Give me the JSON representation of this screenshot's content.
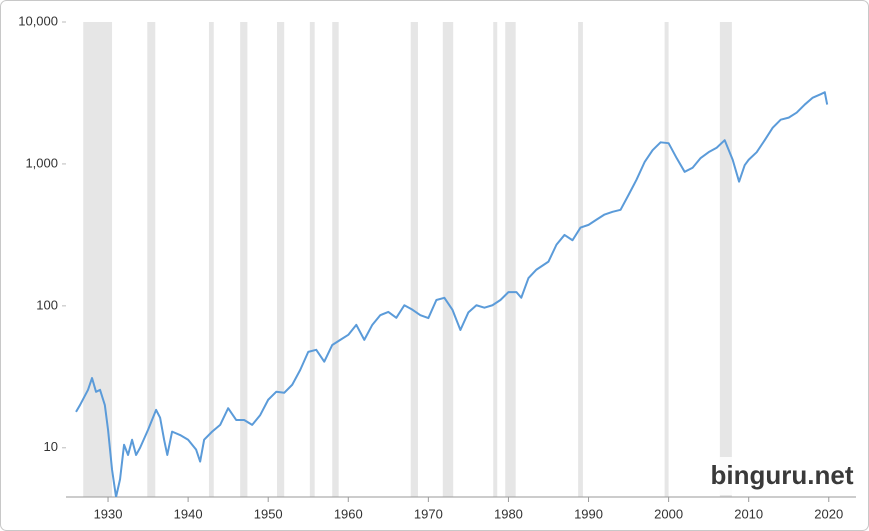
{
  "chart_data": {
    "type": "line",
    "log_y": true,
    "color": "#5b9bd9",
    "band_color": "#e6e6e6",
    "xlim": [
      1924.75,
      2023.4
    ],
    "ylim": [
      4.5,
      10000
    ],
    "xticks": [
      1930,
      1940,
      1950,
      1960,
      1970,
      1980,
      1990,
      2000,
      2010,
      2020
    ],
    "yticks": [
      10,
      100,
      {
        "value": 1000,
        "label": "1,000"
      },
      {
        "value": 10000,
        "label": "10,000"
      }
    ],
    "watermark": "binguru.net",
    "shaded_periods": [
      [
        1926.9,
        1930.5
      ],
      [
        1934.9,
        1935.9
      ],
      [
        1942.6,
        1943.2
      ],
      [
        1946.5,
        1947.4
      ],
      [
        1951.1,
        1952.0
      ],
      [
        1955.2,
        1955.8
      ],
      [
        1958.0,
        1958.8
      ],
      [
        1967.8,
        1968.7
      ],
      [
        1971.8,
        1973.1
      ],
      [
        1978.1,
        1978.6
      ],
      [
        1979.6,
        1980.9
      ],
      [
        1988.7,
        1989.3
      ],
      [
        1999.5,
        2000.0
      ],
      [
        2006.4,
        2007.9
      ]
    ],
    "x": [
      1926.0,
      1926.5,
      1927.5,
      1928.0,
      1928.5,
      1929.0,
      1929.6,
      1930.0,
      1930.5,
      1931.0,
      1931.5,
      1932.0,
      1932.5,
      1933.0,
      1933.5,
      1934.0,
      1935.0,
      1936.0,
      1936.5,
      1937.0,
      1937.4,
      1938.0,
      1939.0,
      1940.0,
      1941.0,
      1941.5,
      1942.0,
      1943.0,
      1944.0,
      1945.0,
      1946.0,
      1947.0,
      1948.0,
      1949.0,
      1950.0,
      1951.0,
      1952.0,
      1953.0,
      1954.0,
      1955.0,
      1956.0,
      1957.0,
      1958.0,
      1959.0,
      1960.0,
      1961.0,
      1962.0,
      1963.0,
      1964.0,
      1965.0,
      1966.0,
      1967.0,
      1968.0,
      1969.0,
      1970.0,
      1971.0,
      1972.0,
      1973.0,
      1974.0,
      1975.0,
      1976.0,
      1977.0,
      1978.0,
      1979.0,
      1980.0,
      1981.0,
      1981.6,
      1982.5,
      1983.5,
      1985.0,
      1986.0,
      1987.0,
      1988.0,
      1989.0,
      1990.0,
      1991.0,
      1992.0,
      1993.0,
      1994.0,
      1995.0,
      1996.0,
      1997.0,
      1998.0,
      1999.0,
      2000.0,
      2001.0,
      2002.0,
      2003.0,
      2004.0,
      2005.0,
      2006.0,
      2007.0,
      2008.0,
      2008.8,
      2009.5,
      2010.0,
      2011.0,
      2012.0,
      2013.0,
      2014.0,
      2015.0,
      2016.0,
      2017.0,
      2018.0,
      2019.0,
      2019.5,
      2019.8
    ],
    "values": [
      17.9,
      20,
      25.6,
      31,
      24.8,
      25.6,
      20,
      13.4,
      7,
      4.5,
      6,
      10.5,
      8.9,
      11.4,
      8.9,
      10,
      13.4,
      18.5,
      16.3,
      11.4,
      8.9,
      13,
      12.3,
      11.4,
      9.7,
      8,
      11.4,
      13,
      14.5,
      19,
      15.7,
      15.7,
      14.5,
      17,
      21.8,
      24.8,
      24.4,
      27.8,
      35.4,
      47.4,
      49,
      40.4,
      53,
      57.6,
      62.5,
      73.5,
      57.6,
      73.5,
      86,
      90.6,
      82.4,
      101,
      94,
      86,
      82,
      110,
      114,
      94,
      67.6,
      90,
      101,
      97,
      101,
      110,
      125,
      125,
      114,
      157,
      180,
      205,
      270,
      316,
      290,
      356,
      372,
      405,
      440,
      460,
      475,
      605,
      776,
      1030,
      1250,
      1420,
      1400,
      1100,
      880,
      940,
      1100,
      1210,
      1300,
      1470,
      1070,
      750,
      980,
      1070,
      1210,
      1470,
      1800,
      2050,
      2120,
      2300,
      2620,
      2930,
      3100,
      3200,
      2620
    ]
  }
}
